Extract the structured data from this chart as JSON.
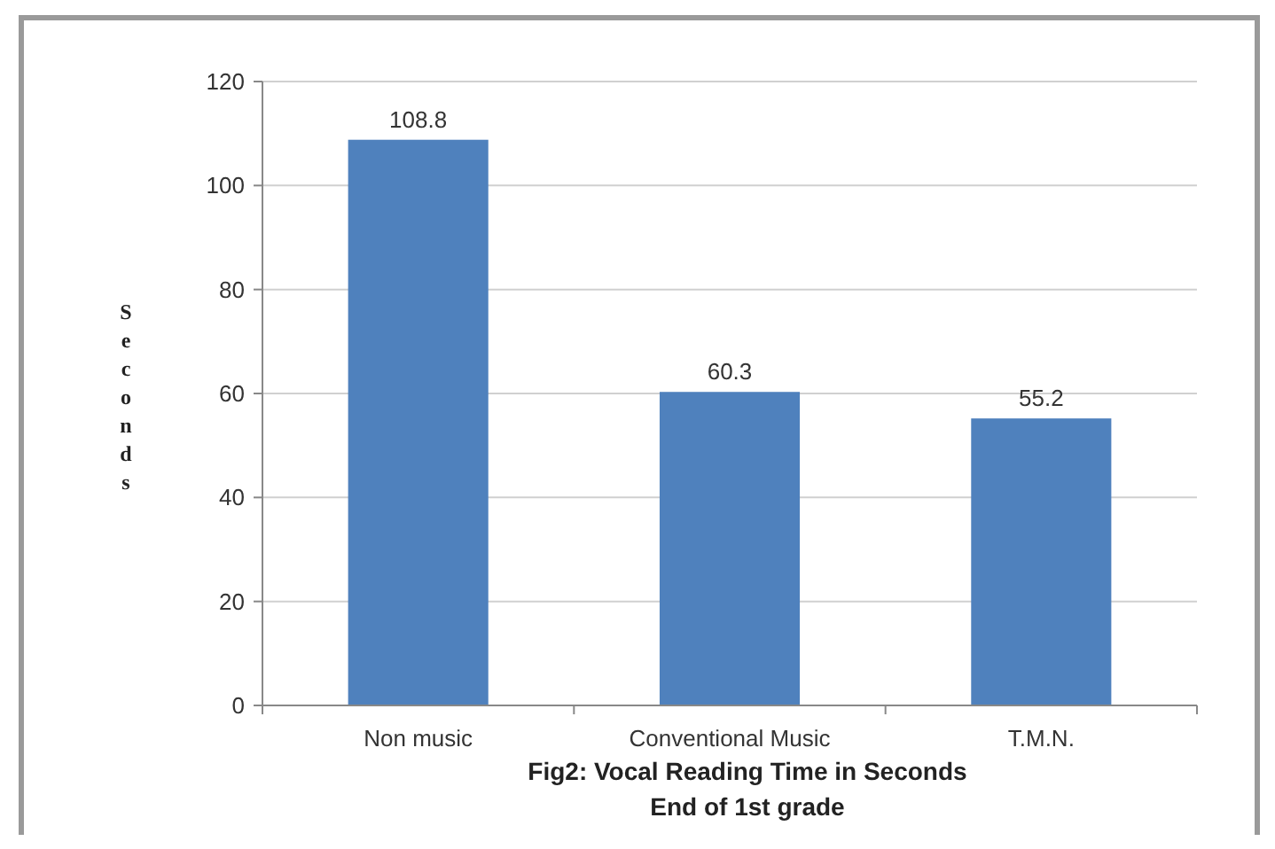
{
  "chart_data": {
    "type": "bar",
    "title": "Fig2: Vocal Reading Time in Seconds",
    "subtitle": "End of 1st grade",
    "ylabel": "Seconds",
    "categories": [
      "Non music",
      "Conventional Music",
      "T.M.N."
    ],
    "values": [
      108.8,
      60.3,
      55.2
    ],
    "color": "#4f81bd",
    "ylim": [
      0,
      120
    ],
    "yticks": [
      0,
      20,
      40,
      60,
      80,
      100,
      120
    ],
    "grid": "y",
    "data_labels": true
  }
}
